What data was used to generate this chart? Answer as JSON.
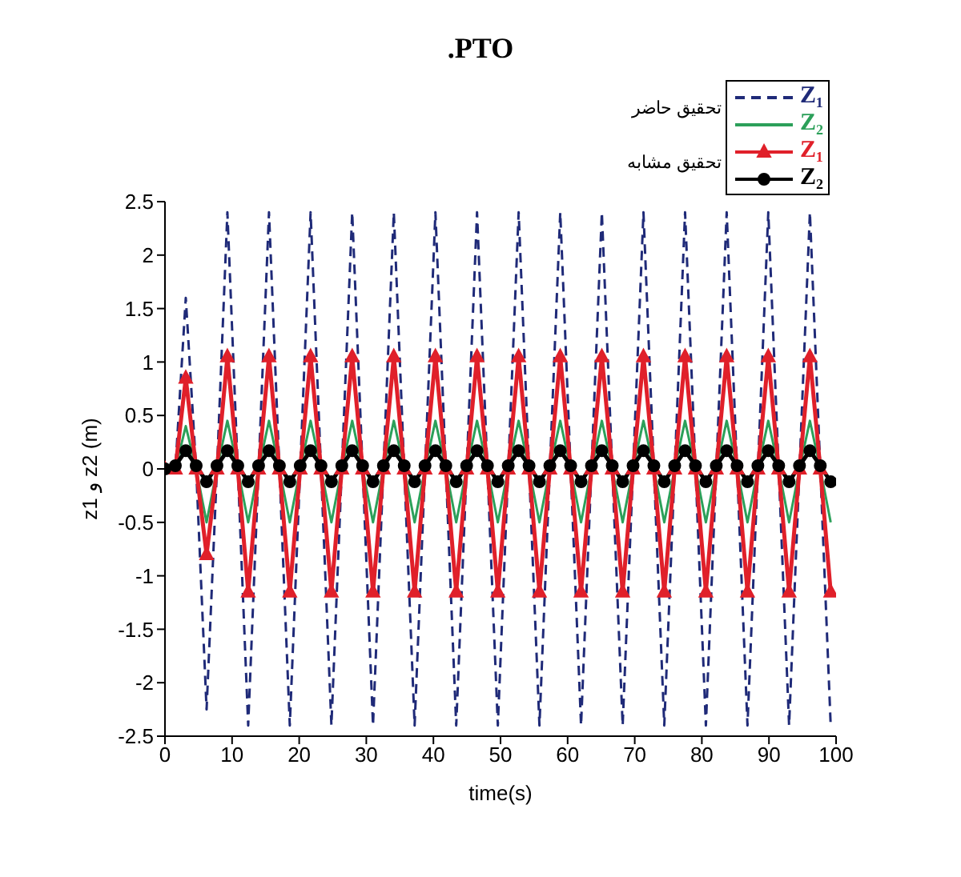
{
  "chart_data": {
    "type": "line",
    "title": ".PTO",
    "xlabel": "time(s)",
    "ylabel": "z1 و z2  (m)",
    "x": [
      0,
      1.55,
      3.1,
      4.65,
      6.2,
      7.75,
      9.3,
      10.85,
      12.4,
      13.95,
      15.5,
      17.05,
      18.6,
      20.15,
      21.7,
      23.25,
      24.8,
      26.35,
      27.9,
      29.45,
      31,
      32.55,
      34.1,
      35.65,
      37.2,
      38.75,
      40.3,
      41.85,
      43.4,
      44.95,
      46.5,
      48.05,
      49.6,
      51.15,
      52.7,
      54.25,
      55.8,
      57.35,
      58.9,
      60.45,
      62,
      63.55,
      65.1,
      66.65,
      68.2,
      69.75,
      71.3,
      72.85,
      74.4,
      75.95,
      77.5,
      79.05,
      80.6,
      82.15,
      83.7,
      85.25,
      86.8,
      88.35,
      89.9,
      91.45,
      93,
      94.55,
      96.1,
      97.65,
      99.2
    ],
    "series": [
      {
        "name": "Z₁",
        "color": "#1f2a78",
        "line_style": "dashed",
        "marker": "none",
        "values": [
          0,
          0,
          1.6,
          0,
          -2.25,
          0,
          2.4,
          0,
          -2.4,
          0,
          2.4,
          0,
          -2.4,
          0,
          2.4,
          0,
          -2.4,
          0,
          2.4,
          0,
          -2.4,
          0,
          2.4,
          0,
          -2.4,
          0,
          2.4,
          0,
          -2.4,
          0,
          2.4,
          0,
          -2.4,
          0,
          2.4,
          0,
          -2.4,
          0,
          2.4,
          0,
          -2.4,
          0,
          2.4,
          0,
          -2.4,
          0,
          2.4,
          0,
          -2.4,
          0,
          2.4,
          0,
          -2.4,
          0,
          2.4,
          0,
          -2.4,
          0,
          2.4,
          0,
          -2.4,
          0,
          2.4,
          0,
          -2.4
        ]
      },
      {
        "name": "Z₂",
        "color": "#2ca05a",
        "line_style": "solid",
        "marker": "none",
        "values": [
          0,
          0,
          0.4,
          0,
          -0.5,
          0,
          0.45,
          0,
          -0.5,
          0,
          0.45,
          0,
          -0.5,
          0,
          0.45,
          0,
          -0.5,
          0,
          0.45,
          0,
          -0.5,
          0,
          0.45,
          0,
          -0.5,
          0,
          0.45,
          0,
          -0.5,
          0,
          0.45,
          0,
          -0.5,
          0,
          0.45,
          0,
          -0.5,
          0,
          0.45,
          0,
          -0.5,
          0,
          0.45,
          0,
          -0.5,
          0,
          0.45,
          0,
          -0.5,
          0,
          0.45,
          0,
          -0.5,
          0,
          0.45,
          0,
          -0.5,
          0,
          0.45,
          0,
          -0.5,
          0,
          0.45,
          0,
          -0.5
        ]
      },
      {
        "name": "Z₁",
        "color": "#e0202a",
        "line_style": "solid",
        "marker": "triangle",
        "values": [
          0,
          0,
          0.85,
          0,
          -0.8,
          0,
          1.05,
          0,
          -1.15,
          0,
          1.05,
          0,
          -1.15,
          0,
          1.05,
          0,
          -1.15,
          0,
          1.05,
          0,
          -1.15,
          0,
          1.05,
          0,
          -1.15,
          0,
          1.05,
          0,
          -1.15,
          0,
          1.05,
          0,
          -1.15,
          0,
          1.05,
          0,
          -1.15,
          0,
          1.05,
          0,
          -1.15,
          0,
          1.05,
          0,
          -1.15,
          0,
          1.05,
          0,
          -1.15,
          0,
          1.05,
          0,
          -1.15,
          0,
          1.05,
          0,
          -1.15,
          0,
          1.05,
          0,
          -1.15,
          0,
          1.05,
          0,
          -1.15
        ]
      },
      {
        "name": "Z₂",
        "color": "#000000",
        "line_style": "solid",
        "marker": "circle",
        "values": [
          0,
          0.03,
          0.17,
          0.03,
          -0.12,
          0.03,
          0.17,
          0.03,
          -0.12,
          0.03,
          0.17,
          0.03,
          -0.12,
          0.03,
          0.17,
          0.03,
          -0.12,
          0.03,
          0.17,
          0.03,
          -0.12,
          0.03,
          0.17,
          0.03,
          -0.12,
          0.03,
          0.17,
          0.03,
          -0.12,
          0.03,
          0.17,
          0.03,
          -0.12,
          0.03,
          0.17,
          0.03,
          -0.12,
          0.03,
          0.17,
          0.03,
          -0.12,
          0.03,
          0.17,
          0.03,
          -0.12,
          0.03,
          0.17,
          0.03,
          -0.12,
          0.03,
          0.17,
          0.03,
          -0.12,
          0.03,
          0.17,
          0.03,
          -0.12,
          0.03,
          0.17,
          0.03,
          -0.12,
          0.03,
          0.17,
          0.03,
          -0.12
        ]
      }
    ],
    "annotations": [
      "تحقیق حاضر",
      "تحقیق مشابه"
    ],
    "xlim": [
      0,
      100
    ],
    "xticks": [
      0,
      10,
      20,
      30,
      40,
      50,
      60,
      70,
      80,
      90,
      100
    ],
    "ylim": [
      -2.5,
      2.5
    ],
    "yticks": [
      -2.5,
      -2,
      -1.5,
      -1,
      -0.5,
      0,
      0.5,
      1,
      1.5,
      2,
      2.5
    ],
    "grid": false,
    "legend": "top right"
  }
}
